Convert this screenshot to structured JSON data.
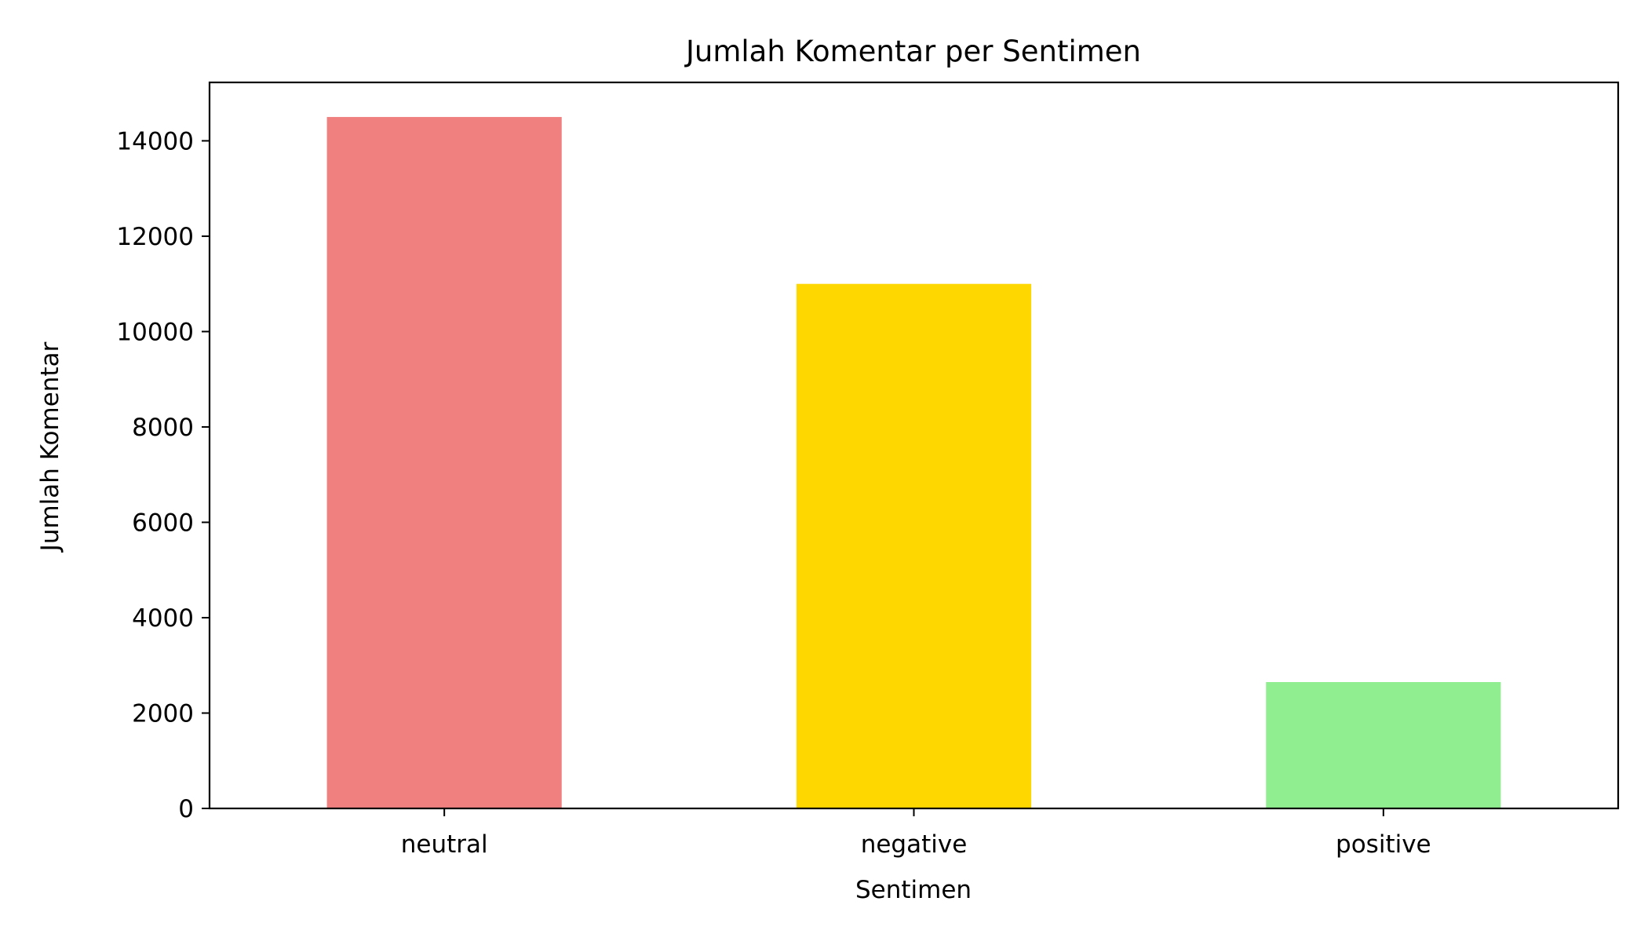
{
  "chart_data": {
    "type": "bar",
    "title": "Jumlah Komentar per Sentimen",
    "xlabel": "Sentimen",
    "ylabel": "Jumlah Komentar",
    "categories": [
      "neutral",
      "negative",
      "positive"
    ],
    "values": [
      14500,
      11000,
      2650
    ],
    "colors": [
      "#f08080",
      "#ffd700",
      "#90ee90"
    ],
    "ylim": [
      0,
      15225
    ],
    "yticks": [
      0,
      2000,
      4000,
      6000,
      8000,
      10000,
      12000,
      14000
    ],
    "grid": false,
    "legend": "none"
  }
}
